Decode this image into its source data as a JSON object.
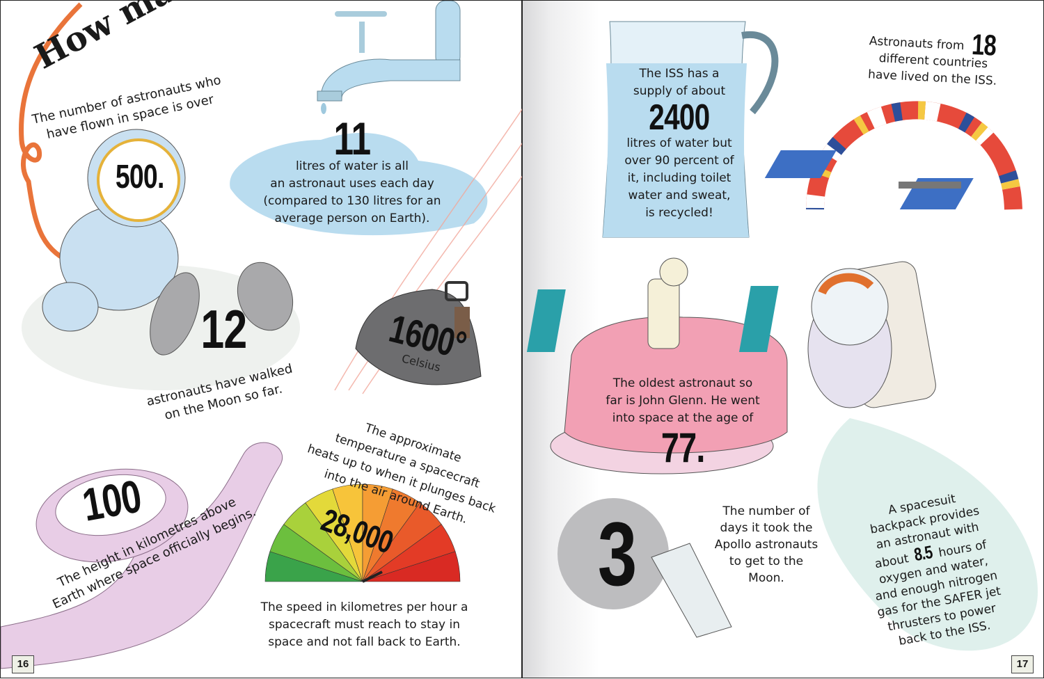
{
  "left_page": {
    "title": "How many?",
    "page_number": "16",
    "facts": {
      "astronauts_flown": {
        "lines": [
          "The number of astronauts who",
          "have flown in space is over"
        ],
        "number": "500."
      },
      "water": {
        "number": "11",
        "lines": [
          "litres of water is all",
          "an astronaut uses each day",
          "(compared to 130 litres for an",
          "average person on Earth)."
        ]
      },
      "moon_walkers": {
        "number": "12",
        "lines": [
          "astronauts have walked",
          "on the Moon so far."
        ]
      },
      "temperature": {
        "number": "1600°",
        "unit": "Celsius",
        "lines": [
          "The approximate",
          "temperature a spacecraft",
          "heats up to when it plunges back",
          "into the air around Earth."
        ]
      },
      "space_height": {
        "number": "100",
        "lines": [
          "The height in kilometres above",
          "Earth where space officially begins."
        ]
      },
      "speed": {
        "number": "28,000",
        "lines": [
          "The speed in kilometres per hour a",
          "spacecraft must reach to stay in",
          "space and not fall back to Earth."
        ]
      }
    }
  },
  "right_page": {
    "page_number": "17",
    "facts": {
      "iss_water": {
        "lines_before": [
          "The ISS has a",
          "supply of about"
        ],
        "number": "2400",
        "lines_after": [
          "litres of water but",
          "over 90 percent of",
          "it, including toilet",
          "water and sweat,",
          "is recycled!"
        ]
      },
      "countries": {
        "line1": "Astronauts from",
        "number": "18",
        "lines": [
          "different countries",
          "have lived on the ISS."
        ]
      },
      "oldest": {
        "lines": [
          "The oldest astronaut so",
          "far is John Glenn. He went",
          "into space at the age of"
        ],
        "number": "77.",
        "candles": "77"
      },
      "apollo_days": {
        "number": "3",
        "lines": [
          "The number of",
          "days it took the",
          "Apollo astronauts",
          "to get to the",
          "Moon."
        ]
      },
      "backpack": {
        "lines_before": [
          "A spacesuit",
          "backpack provides",
          "an astronaut with"
        ],
        "about": "about",
        "number": "8.5",
        "hours": "hours of",
        "lines_after": [
          "oxygen and water,",
          "and enough nitrogen",
          "gas for the SAFER jet",
          "thrusters to power",
          "back to the ISS."
        ]
      }
    }
  },
  "colors": {
    "water_blue": "#b9dcef",
    "tape_pink": "#e8cde6",
    "cake_pink": "#f2a0b4",
    "orange_rope": "#e9743a",
    "capsule_grey": "#6d6d6f"
  }
}
